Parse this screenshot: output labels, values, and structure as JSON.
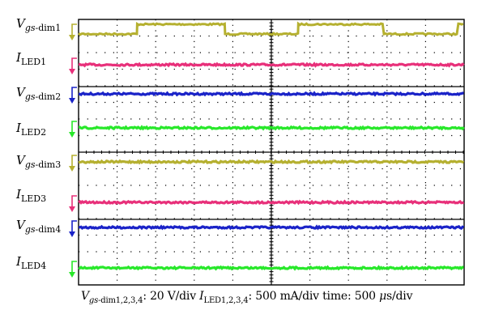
{
  "chart_data": {
    "type": "line",
    "title": "",
    "grid": true,
    "channels": [
      {
        "sym": "V",
        "sub": "gs",
        "sub2": "-dim1",
        "color": "#b5b030",
        "waveform": "pwm",
        "levels": [
          0,
          1
        ],
        "transitions": [
          1.52,
          3.8,
          5.7,
          7.92,
          9.85
        ]
      },
      {
        "sym": "I",
        "sub": "",
        "sub2": "LED1",
        "color": "#e8307a",
        "waveform": "dc"
      },
      {
        "sym": "V",
        "sub": "gs",
        "sub2": "-dim2",
        "color": "#1a23c8",
        "waveform": "dc"
      },
      {
        "sym": "I",
        "sub": "",
        "sub2": "LED2",
        "color": "#28e82a",
        "waveform": "dc"
      },
      {
        "sym": "V",
        "sub": "gs",
        "sub2": "-dim3",
        "color": "#b5b030",
        "waveform": "dc"
      },
      {
        "sym": "I",
        "sub": "",
        "sub2": "LED3",
        "color": "#e8307a",
        "waveform": "dc"
      },
      {
        "sym": "V",
        "sub": "gs",
        "sub2": "-dim4",
        "color": "#1a23c8",
        "waveform": "dc"
      },
      {
        "sym": "I",
        "sub": "",
        "sub2": "LED4",
        "color": "#28e82a",
        "waveform": "dc"
      }
    ],
    "x_divisions": 10,
    "y_divisions": 8
  },
  "caption": {
    "v_sym": "V",
    "v_sub": "gs",
    "v_rest": "-dim1,2,3,4",
    "v_scale": ": 20 V/div ",
    "i_sym": "I",
    "i_sub": "LED1,2,3,4",
    "i_scale": ": 500 mA/div time: 500 ",
    "mu": "μ",
    "t_unit": "s/div"
  }
}
